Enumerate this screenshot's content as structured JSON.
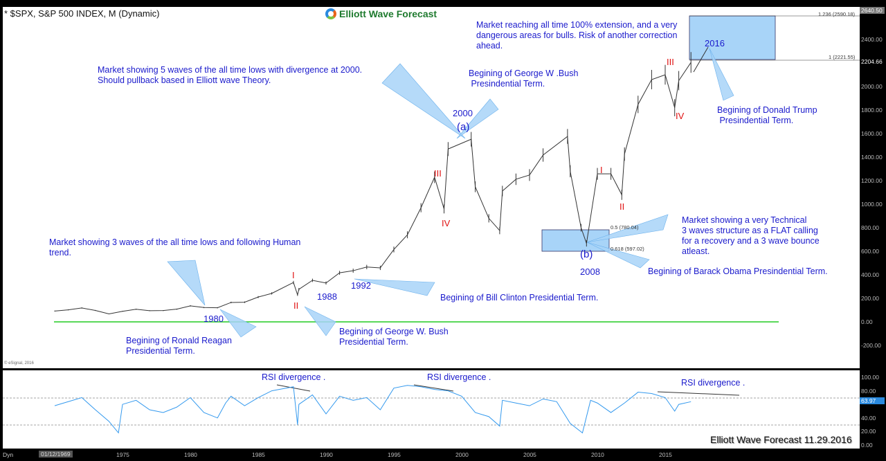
{
  "header": {
    "title": "* $SPX, S&P 500 INDEX, M (Dynamic)",
    "logo_text": "Elliott Wave Forecast",
    "footer": "Elliott Wave Forecast 11.29.2016",
    "copyright": "© eSignal, 2016",
    "dyn_label": "Dyn",
    "start_date": "01/12/1969"
  },
  "colors": {
    "price": "#333333",
    "rsi": "#3399ee",
    "annotation_text": "#1a1acc",
    "wave_label": "#e01010",
    "zero_line": "#22cc22",
    "fib_box": "#a8d4f8"
  },
  "chart_data": {
    "type": "line",
    "price_panel": {
      "xlabel": "",
      "ylabel": "",
      "ylim": [
        -300,
        2640.5
      ],
      "y_ticks": [
        "2400.00",
        "2000.00",
        "1800.00",
        "1600.00",
        "1400.00",
        "1200.00",
        "1000.00",
        "800.00",
        "600.00",
        "400.00",
        "200.00",
        "0.00",
        "-200.00"
      ],
      "y_tick_values": [
        2400,
        2000,
        1800,
        1600,
        1400,
        1200,
        1000,
        800,
        600,
        400,
        200,
        0,
        -200
      ],
      "last_price_label": "2204.66",
      "last_price": 2204.66,
      "top_label": "2640.50",
      "x": [
        1970,
        1971,
        1972,
        1973,
        1974,
        1975,
        1976,
        1977,
        1978,
        1979,
        1980,
        1981,
        1982,
        1983,
        1984,
        1985,
        1986,
        1987.6,
        1987.9,
        1988,
        1989,
        1990,
        1991,
        1992,
        1993,
        1994,
        1995,
        1996,
        1997,
        1998,
        1998.7,
        1999,
        2000.7,
        2001,
        2002,
        2002.8,
        2003,
        2004,
        2005,
        2006,
        2007.8,
        2008,
        2008.8,
        2009.2,
        2010,
        2011,
        2011.8,
        2012,
        2013,
        2014,
        2015,
        2015.7,
        2016,
        2016.9
      ],
      "values": [
        92,
        102,
        118,
        97,
        68,
        90,
        107,
        95,
        96,
        108,
        136,
        122,
        120,
        165,
        167,
        211,
        242,
        335,
        230,
        277,
        353,
        330,
        417,
        435,
        466,
        459,
        615,
        740,
        970,
        1229,
        960,
        1469,
        1552,
        1148,
        880,
        776,
        1112,
        1212,
        1248,
        1418,
        1576,
        1280,
        800,
        667,
        1258,
        1258,
        1080,
        1426,
        1848,
        2059,
        2100,
        1820,
        2050,
        2204.66
      ],
      "fibs": [
        {
          "label": "1.236 (2590.18)",
          "value": 2590.18
        },
        {
          "label": "1 (2221.55)",
          "value": 2221.55
        },
        {
          "label": "0.5 (780.04)",
          "value": 780.04
        },
        {
          "label": "0.618 (597.02)",
          "value": 597.02
        }
      ],
      "zero_line": 0
    },
    "rsi_panel": {
      "ylim": [
        0,
        100
      ],
      "y_ticks": [
        "100.00",
        "80.00",
        "40.00",
        "20.00",
        "0.00"
      ],
      "y_tick_values": [
        100,
        80,
        40,
        20,
        0
      ],
      "current_label": "63.97",
      "current": 63.97,
      "levels": [
        70,
        30
      ],
      "x": [
        1970,
        1971,
        1972,
        1973,
        1974,
        1974.7,
        1975,
        1976,
        1977,
        1978,
        1979,
        1980,
        1981,
        1982,
        1982.6,
        1983,
        1984,
        1985,
        1986,
        1987.6,
        1987.9,
        1988,
        1989,
        1990,
        1991,
        1992,
        1993,
        1994,
        1995,
        1996,
        1997,
        1998,
        1999,
        2000,
        2001,
        2002,
        2002.8,
        2003,
        2004,
        2005,
        2006,
        2007,
        2008,
        2008.9,
        2009.5,
        2010,
        2011,
        2012,
        2013,
        2014,
        2015,
        2015.7,
        2016,
        2016.9
      ],
      "values": [
        58,
        64,
        70,
        52,
        35,
        18,
        60,
        66,
        52,
        48,
        56,
        70,
        48,
        40,
        62,
        72,
        58,
        70,
        80,
        86,
        30,
        60,
        74,
        46,
        72,
        66,
        70,
        52,
        84,
        88,
        86,
        82,
        80,
        72,
        48,
        42,
        28,
        66,
        62,
        58,
        68,
        64,
        32,
        18,
        66,
        62,
        48,
        62,
        78,
        76,
        70,
        50,
        60,
        63.97
      ]
    },
    "x_ticks": [
      "1975",
      "1980",
      "1985",
      "1990",
      "1995",
      "2000",
      "2005",
      "2010",
      "2015"
    ],
    "x_tick_values": [
      1975,
      1980,
      1985,
      1990,
      1995,
      2000,
      2005,
      2010,
      2015
    ]
  },
  "annotations": {
    "a1": "Market showing 5 waves of the all time lows with divergence at 2000.\nShould pullback based in Elliott wave Theory.",
    "a2": "Begining of George W .Bush\n Presindential Term.",
    "a3": "Market reaching all time 100% extension, and a very\ndangerous areas for bulls. Risk of another correction\nahead.",
    "a4": "Begining of Donald Trump\n Presindential Term.",
    "a5": "Market showing a very Technical\n3 waves structure as a FLAT calling\nfor a recovery and a 3 wave bounce\natleast.",
    "a6": "Begining of Barack Obama Presindential Term.",
    "a7": "Begining of Bill Clinton Presidential Term.",
    "a8": "Market showing 3 waves of the all time lows and following Human\ntrend.",
    "a9": "Begining of Ronald Reagan\nPresidential Term.",
    "a10": "Begining of George W. Bush\nPresidential Term.",
    "rsi1": "RSI divergence .",
    "rsi2": "RSI divergence .",
    "rsi3": "RSI divergence ."
  },
  "labels": {
    "y2000": "2000",
    "wa": "(a)",
    "y2008": "2008",
    "wb": "(b)",
    "y2016": "2016",
    "y1980": "1980",
    "y1988": "1988",
    "y1992": "1992"
  },
  "waves": {
    "I_1": "I",
    "II_1": "II",
    "III_1": "III",
    "IV_1": "IV",
    "I_2": "I",
    "II_2": "II",
    "III_2": "III",
    "IV_2": "IV"
  }
}
